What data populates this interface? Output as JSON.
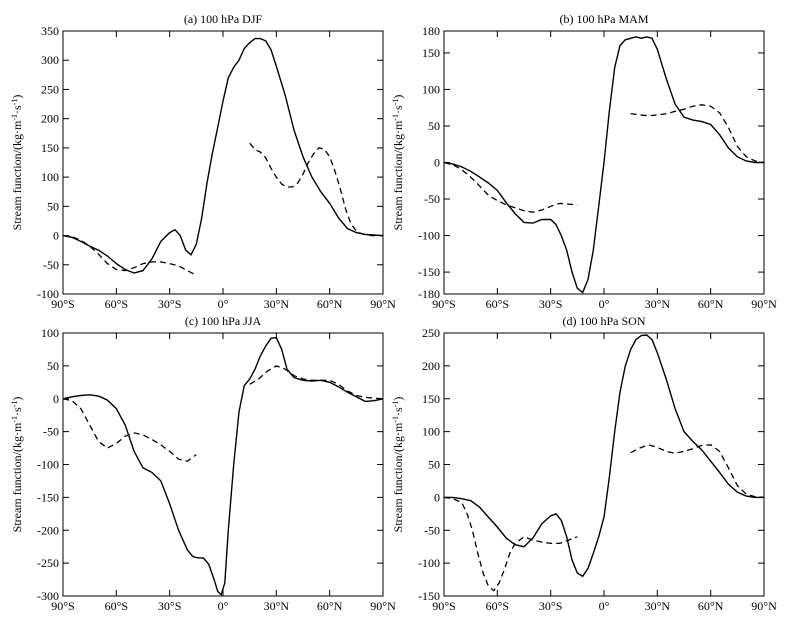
{
  "chart_data": [
    {
      "type": "line",
      "title": "(a) 100 hPa DJF",
      "ylabel_main": "Stream function/(kg·m",
      "ylabel_exp1": "-1",
      "ylabel_mid": "·s",
      "ylabel_exp2": "-1",
      "ylabel_end": ")",
      "xticks": [
        "90°S",
        "60°S",
        "30°S",
        "0°",
        "30°N",
        "60°N",
        "90°N"
      ],
      "xlim": [
        -90,
        90
      ],
      "ylim": [
        -100,
        350
      ],
      "yticks": [
        -100,
        -50,
        0,
        50,
        100,
        150,
        200,
        250,
        300,
        350
      ],
      "series": [
        {
          "style": "solid",
          "x": [
            -90,
            -85,
            -80,
            -75,
            -70,
            -65,
            -60,
            -55,
            -50,
            -45,
            -40,
            -35,
            -30,
            -27,
            -24,
            -21,
            -18,
            -15,
            -12,
            -9,
            -6,
            -3,
            0,
            3,
            6,
            9,
            12,
            15,
            18,
            21,
            24,
            27,
            30,
            35,
            40,
            45,
            50,
            55,
            60,
            65,
            70,
            75,
            80,
            85,
            90
          ],
          "y": [
            0,
            -3,
            -10,
            -18,
            -25,
            -35,
            -48,
            -58,
            -64,
            -60,
            -40,
            -10,
            5,
            10,
            0,
            -25,
            -33,
            -15,
            30,
            90,
            140,
            185,
            230,
            270,
            288,
            300,
            320,
            330,
            337,
            337,
            333,
            318,
            290,
            240,
            180,
            135,
            100,
            75,
            55,
            30,
            12,
            5,
            2,
            1,
            0
          ]
        },
        {
          "style": "dashed",
          "x": [
            -90,
            -85,
            -80,
            -75,
            -70,
            -65,
            -60,
            -55,
            -50,
            -45,
            -40,
            -35,
            -30,
            -25,
            -20,
            -15
          ],
          "y": [
            0,
            -2,
            -8,
            -18,
            -32,
            -48,
            -58,
            -60,
            -55,
            -48,
            -45,
            -45,
            -48,
            -52,
            -60,
            -68
          ]
        },
        {
          "style": "dashed",
          "x": [
            15,
            18,
            21,
            24,
            27,
            30,
            33,
            36,
            39,
            42,
            45,
            48,
            51,
            54,
            57,
            60,
            63,
            66,
            69,
            72,
            75,
            78,
            81,
            84,
            87,
            90
          ],
          "y": [
            158,
            147,
            143,
            133,
            115,
            100,
            88,
            83,
            83,
            90,
            105,
            125,
            140,
            150,
            148,
            135,
            110,
            80,
            45,
            20,
            8,
            3,
            1,
            0,
            0,
            0
          ]
        }
      ]
    },
    {
      "type": "line",
      "title": "(b) 100 hPa MAM",
      "ylabel_main": "Stream function/(kg·m",
      "ylabel_exp1": "-1",
      "ylabel_mid": "·s",
      "ylabel_exp2": "-1",
      "ylabel_end": ")",
      "xticks": [
        "90°S",
        "60°S",
        "30°S",
        "0°",
        "30°N",
        "60°N",
        "90°N"
      ],
      "xlim": [
        -90,
        90
      ],
      "ylim": [
        -180,
        180
      ],
      "yticks": [
        -150,
        -100,
        -50,
        0,
        50,
        100,
        150
      ],
      "ytick_labels": [
        "-180",
        "-150",
        "-100",
        "-50",
        "0",
        "50",
        "100",
        "150",
        "180"
      ],
      "ytick_values": [
        -180,
        -150,
        -100,
        -50,
        0,
        50,
        100,
        150,
        180
      ],
      "series": [
        {
          "style": "solid",
          "x": [
            -90,
            -85,
            -80,
            -75,
            -70,
            -65,
            -60,
            -55,
            -50,
            -45,
            -40,
            -35,
            -30,
            -27,
            -24,
            -21,
            -18,
            -15,
            -12,
            -9,
            -6,
            -3,
            0,
            3,
            6,
            9,
            12,
            15,
            18,
            21,
            24,
            27,
            30,
            35,
            40,
            45,
            50,
            55,
            60,
            65,
            70,
            75,
            80,
            85,
            90
          ],
          "y": [
            0,
            -2,
            -6,
            -12,
            -20,
            -28,
            -38,
            -55,
            -70,
            -82,
            -83,
            -78,
            -78,
            -85,
            -100,
            -120,
            -150,
            -172,
            -178,
            -160,
            -120,
            -60,
            0,
            70,
            130,
            160,
            168,
            170,
            172,
            170,
            172,
            170,
            155,
            115,
            80,
            62,
            58,
            56,
            52,
            38,
            20,
            8,
            2,
            0,
            0
          ]
        },
        {
          "style": "dashed",
          "x": [
            -90,
            -85,
            -80,
            -75,
            -70,
            -65,
            -60,
            -55,
            -50,
            -45,
            -40,
            -35,
            -30,
            -25,
            -20,
            -15
          ],
          "y": [
            0,
            -3,
            -10,
            -20,
            -32,
            -45,
            -52,
            -58,
            -62,
            -66,
            -68,
            -65,
            -60,
            -56,
            -57,
            -58
          ]
        },
        {
          "style": "dashed",
          "x": [
            15,
            20,
            25,
            30,
            35,
            40,
            45,
            50,
            55,
            60,
            65,
            70,
            75,
            80,
            85,
            90
          ],
          "y": [
            67,
            65,
            64,
            65,
            67,
            70,
            73,
            77,
            79,
            77,
            68,
            48,
            22,
            8,
            2,
            0
          ]
        }
      ]
    },
    {
      "type": "line",
      "title": "(c) 100 hPa JJA",
      "ylabel_main": "Stream function/(kg·m",
      "ylabel_exp1": "-1",
      "ylabel_mid": "·s",
      "ylabel_exp2": "-1",
      "ylabel_end": ")",
      "xticks": [
        "90°S",
        "60°S",
        "30°S",
        "0°",
        "30°N",
        "60°N",
        "90°N"
      ],
      "xlim": [
        -90,
        90
      ],
      "ylim": [
        -300,
        100
      ],
      "yticks": [
        -300,
        -250,
        -200,
        -150,
        -100,
        -50,
        0,
        50,
        100
      ],
      "series": [
        {
          "style": "solid",
          "x": [
            -90,
            -85,
            -80,
            -75,
            -70,
            -65,
            -60,
            -55,
            -50,
            -45,
            -40,
            -35,
            -30,
            -25,
            -20,
            -17,
            -14,
            -11,
            -8,
            -5,
            -3,
            -1,
            1,
            3,
            6,
            9,
            12,
            15,
            18,
            21,
            24,
            27,
            30,
            33,
            36,
            40,
            45,
            50,
            55,
            60,
            65,
            70,
            75,
            80,
            85,
            90
          ],
          "y": [
            0,
            3,
            5,
            6,
            4,
            -2,
            -15,
            -40,
            -80,
            -105,
            -112,
            -125,
            -160,
            -200,
            -230,
            -240,
            -242,
            -242,
            -252,
            -275,
            -293,
            -298,
            -280,
            -200,
            -100,
            -20,
            20,
            30,
            45,
            65,
            80,
            92,
            93,
            75,
            45,
            32,
            28,
            27,
            28,
            25,
            18,
            10,
            3,
            -4,
            -3,
            0
          ]
        },
        {
          "style": "dashed",
          "x": [
            -90,
            -85,
            -80,
            -75,
            -70,
            -65,
            -60,
            -55,
            -50,
            -45,
            -40,
            -35,
            -30,
            -25,
            -20,
            -15
          ],
          "y": [
            0,
            -3,
            -15,
            -40,
            -65,
            -75,
            -68,
            -57,
            -52,
            -55,
            -62,
            -70,
            -80,
            -92,
            -95,
            -85
          ]
        },
        {
          "style": "dashed",
          "x": [
            15,
            20,
            25,
            30,
            35,
            40,
            45,
            50,
            55,
            60,
            65,
            70,
            75,
            80,
            85,
            90
          ],
          "y": [
            22,
            30,
            42,
            50,
            45,
            35,
            30,
            28,
            28,
            28,
            22,
            12,
            5,
            2,
            1,
            0
          ]
        }
      ]
    },
    {
      "type": "line",
      "title": "(d) 100 hPa SON",
      "ylabel_main": "Stream function/(kg·m",
      "ylabel_exp1": "-1",
      "ylabel_mid": "·s",
      "ylabel_exp2": "-1",
      "ylabel_end": ")",
      "xticks": [
        "90°S",
        "60°S",
        "30°S",
        "0°",
        "30°N",
        "60°N",
        "90°N"
      ],
      "xlim": [
        -90,
        90
      ],
      "ylim": [
        -150,
        250
      ],
      "yticks": [
        -150,
        -100,
        -50,
        0,
        50,
        100,
        150,
        200,
        250
      ],
      "series": [
        {
          "style": "solid",
          "x": [
            -90,
            -85,
            -80,
            -75,
            -70,
            -65,
            -60,
            -55,
            -50,
            -45,
            -40,
            -35,
            -30,
            -27,
            -24,
            -21,
            -18,
            -15,
            -12,
            -9,
            -6,
            -3,
            0,
            3,
            6,
            9,
            12,
            15,
            18,
            21,
            24,
            27,
            30,
            35,
            40,
            45,
            50,
            55,
            60,
            65,
            70,
            75,
            80,
            85,
            90
          ],
          "y": [
            0,
            0,
            -2,
            -5,
            -15,
            -30,
            -45,
            -62,
            -72,
            -75,
            -62,
            -40,
            -28,
            -25,
            -35,
            -60,
            -95,
            -115,
            -120,
            -108,
            -85,
            -60,
            -30,
            30,
            100,
            160,
            200,
            225,
            240,
            246,
            247,
            240,
            220,
            180,
            135,
            100,
            85,
            72,
            55,
            38,
            20,
            8,
            2,
            0,
            0
          ]
        },
        {
          "style": "dashed",
          "x": [
            -90,
            -85,
            -80,
            -77,
            -74,
            -71,
            -68,
            -65,
            -62,
            -59,
            -56,
            -53,
            -50,
            -45,
            -40,
            -35,
            -30,
            -25,
            -20,
            -15
          ],
          "y": [
            0,
            -2,
            -8,
            -25,
            -50,
            -85,
            -115,
            -135,
            -142,
            -130,
            -110,
            -85,
            -70,
            -60,
            -65,
            -68,
            -70,
            -70,
            -65,
            -60
          ]
        },
        {
          "style": "dashed",
          "x": [
            15,
            20,
            25,
            30,
            35,
            40,
            45,
            50,
            55,
            60,
            65,
            70,
            75,
            80,
            85,
            90
          ],
          "y": [
            68,
            75,
            80,
            76,
            70,
            67,
            70,
            74,
            79,
            80,
            70,
            45,
            18,
            5,
            1,
            0
          ]
        }
      ]
    }
  ]
}
